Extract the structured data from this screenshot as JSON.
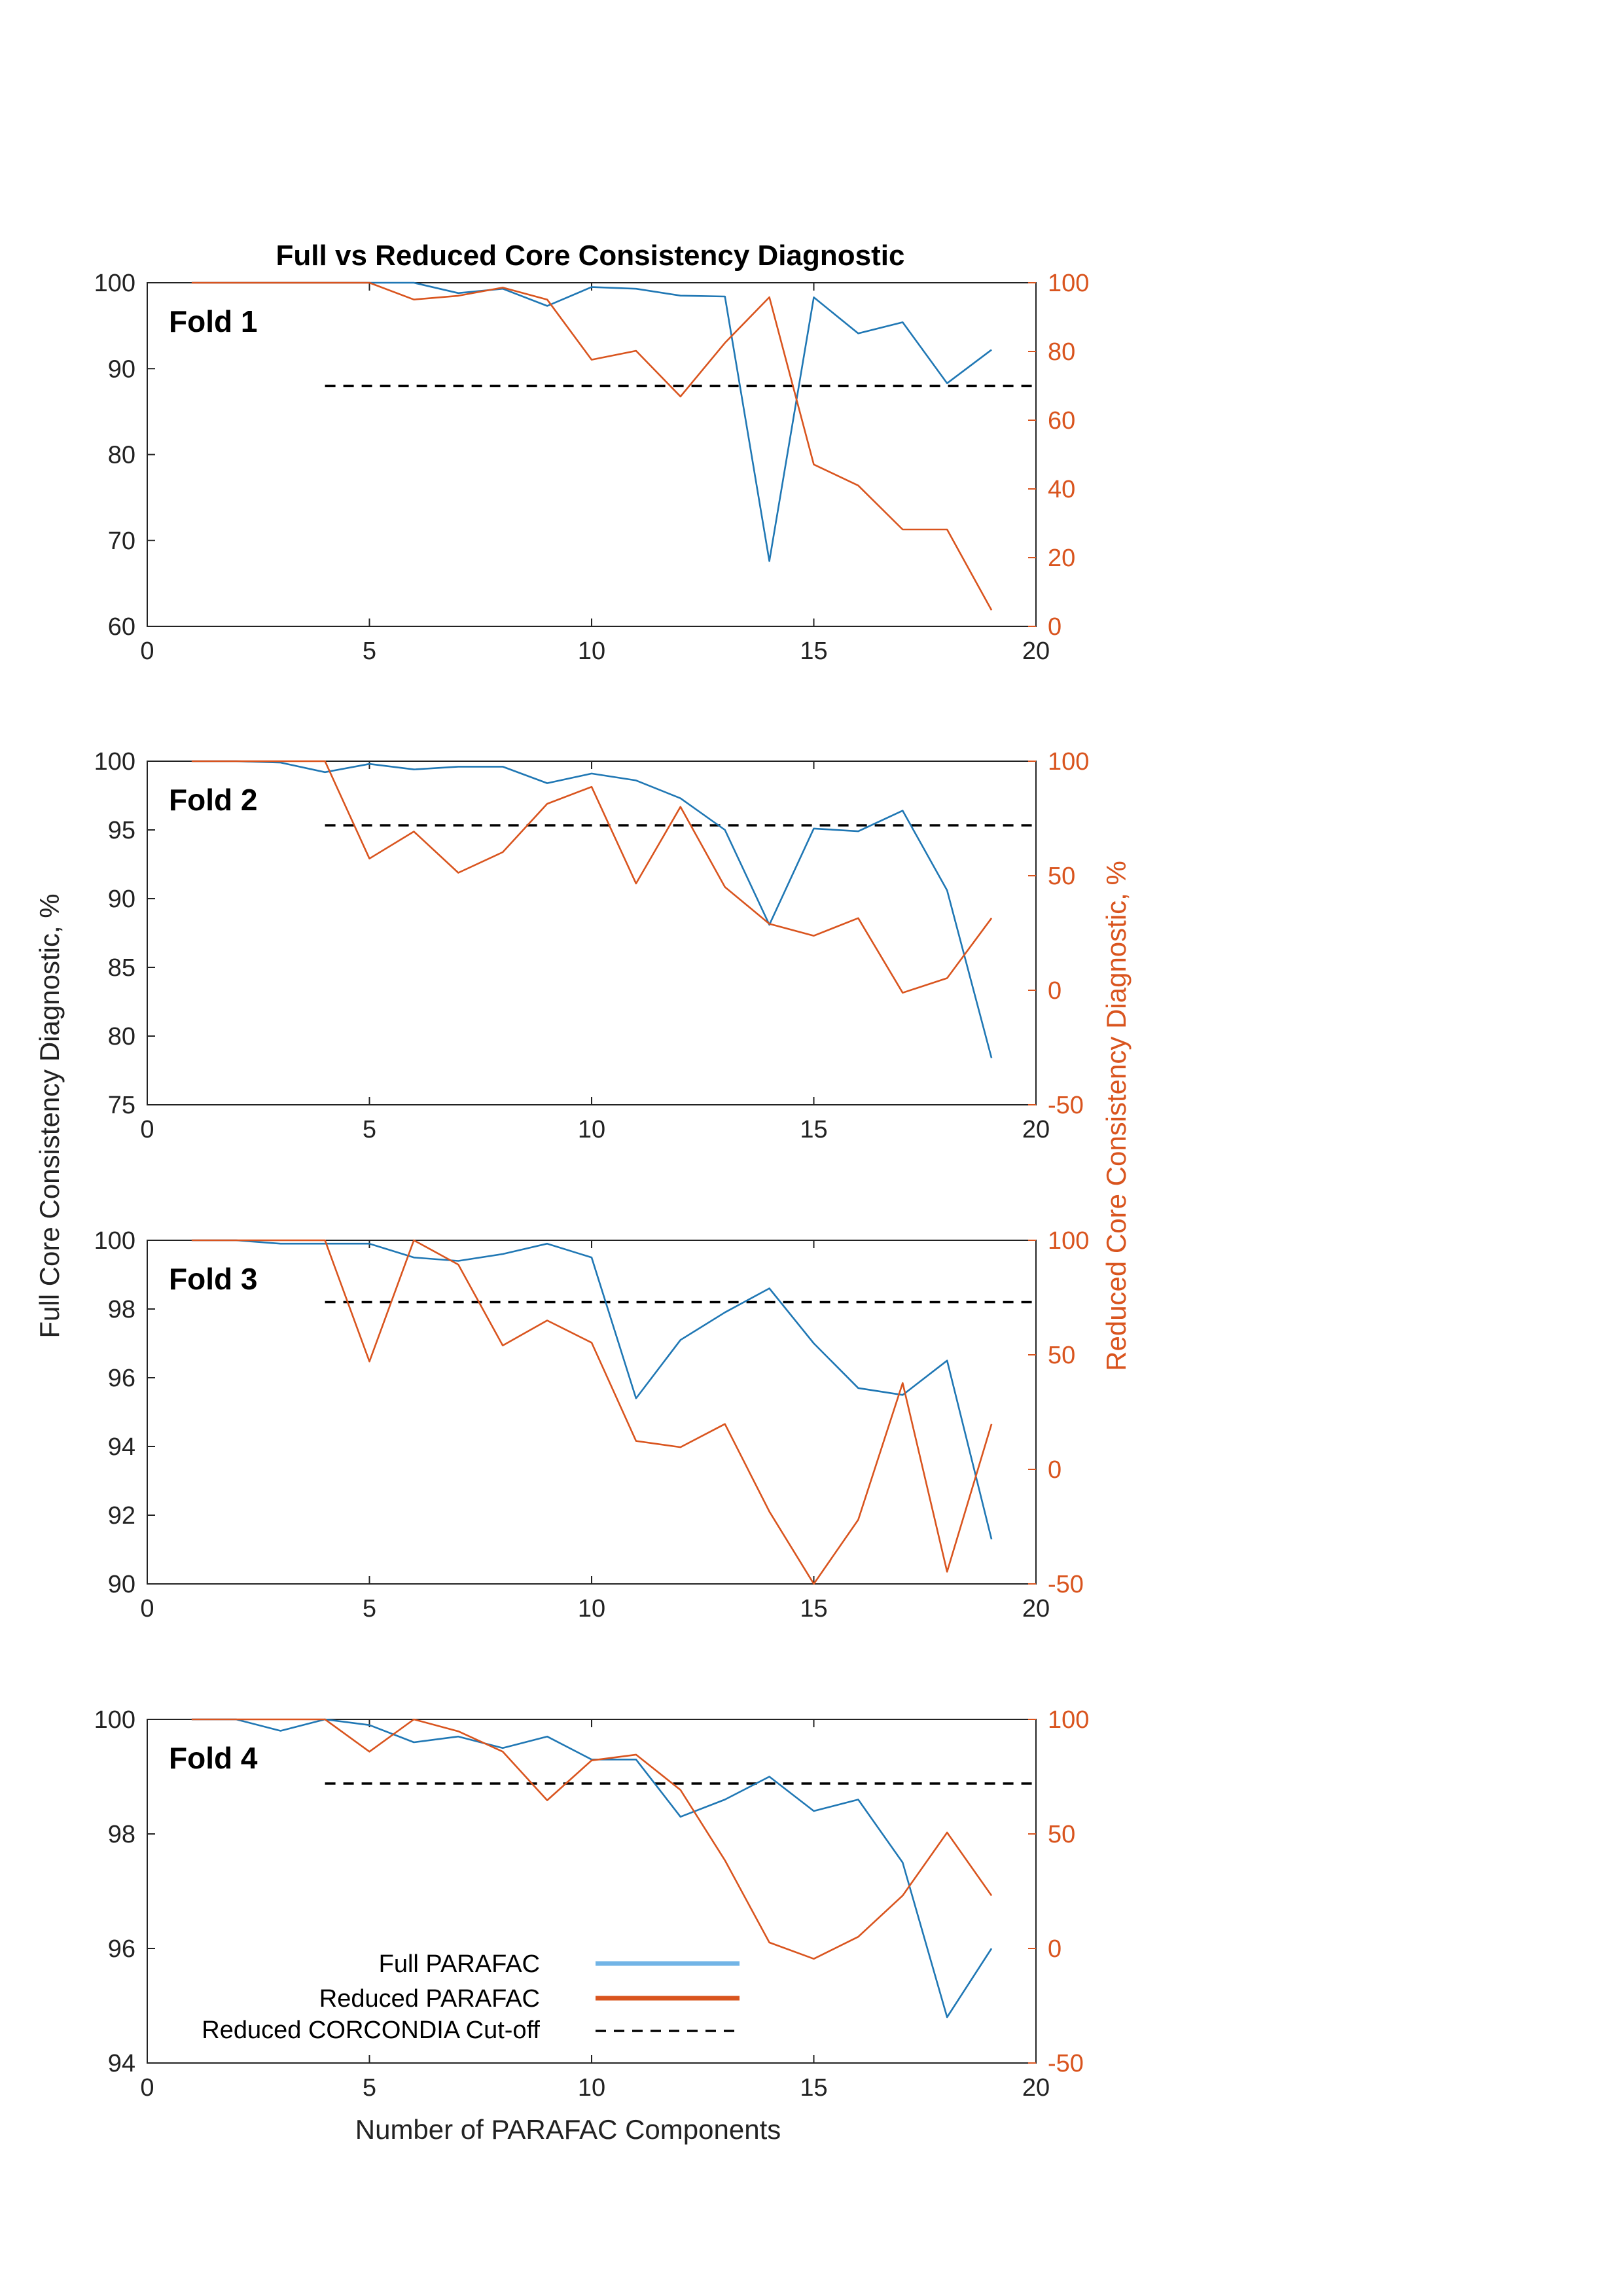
{
  "figure": {
    "title": "Full vs Reduced Core Consistency Diagnostic",
    "left_axis_label": "Full Core Consistency Diagnostic, %",
    "right_axis_label": "Reduced Core Consistency Diagnostic, %",
    "x_axis_label": "Number of PARAFAC Components"
  },
  "legend": {
    "entries": [
      {
        "label": "Full PARAFAC",
        "color": "#72b4e6",
        "style": "solid"
      },
      {
        "label": "Reduced PARAFAC",
        "color": "#d9541e",
        "style": "solid"
      },
      {
        "label": "Reduced CORCONDIA Cut-off",
        "color": "#000000",
        "style": "dashed"
      }
    ],
    "placement": "bottom-center of Fold 4 panel"
  },
  "colors": {
    "full": "#1f77b4",
    "reduced": "#d9541e",
    "reduced_axis": "#d9541e",
    "cutoff": "#000000"
  },
  "chart_data": [
    {
      "type": "line",
      "panel_label": "Fold 1",
      "x": [
        1,
        2,
        3,
        4,
        5,
        6,
        7,
        8,
        9,
        10,
        11,
        12,
        13,
        14,
        15,
        16,
        17,
        18,
        19
      ],
      "xlim": [
        0,
        20
      ],
      "xticks": [
        0,
        5,
        10,
        15,
        20
      ],
      "ylim_left": [
        60,
        100
      ],
      "yticks_left": [
        60,
        70,
        80,
        90,
        100
      ],
      "ylim_right": [
        0,
        100
      ],
      "yticks_right": [
        0,
        20,
        40,
        60,
        80,
        100
      ],
      "series": [
        {
          "name": "Full PARAFAC",
          "axis": "left",
          "values": [
            100,
            100,
            100,
            100,
            100,
            100,
            98.8,
            99.3,
            97.3,
            99.5,
            99.3,
            98.5,
            98.4,
            67.6,
            98.3,
            94.1,
            95.4,
            88.3,
            92.2
          ]
        },
        {
          "name": "Reduced PARAFAC",
          "axis": "right",
          "values": [
            100,
            100,
            100,
            100,
            100,
            95.1,
            96.2,
            98.6,
            95.1,
            77.6,
            80.2,
            66.9,
            82.5,
            95.8,
            47.1,
            41.0,
            28.2,
            28.2,
            4.7
          ]
        }
      ],
      "cutoff": {
        "axis": "right",
        "value": 70,
        "x_start": 4,
        "x_end": 20
      }
    },
    {
      "type": "line",
      "panel_label": "Fold 2",
      "x": [
        1,
        2,
        3,
        4,
        5,
        6,
        7,
        8,
        9,
        10,
        11,
        12,
        13,
        14,
        15,
        16,
        17,
        18,
        19
      ],
      "xlim": [
        0,
        20
      ],
      "xticks": [
        0,
        5,
        10,
        15,
        20
      ],
      "ylim_left": [
        75,
        100
      ],
      "yticks_left": [
        75,
        80,
        85,
        90,
        95,
        100
      ],
      "ylim_right": [
        -50,
        100
      ],
      "yticks_right": [
        -50,
        0,
        50,
        100
      ],
      "series": [
        {
          "name": "Full PARAFAC",
          "axis": "left",
          "values": [
            100,
            100,
            99.9,
            99.2,
            99.8,
            99.4,
            99.6,
            99.6,
            98.4,
            99.1,
            98.6,
            97.3,
            95.0,
            88.1,
            95.1,
            94.9,
            96.4,
            90.6,
            78.4
          ]
        },
        {
          "name": "Reduced PARAFAC",
          "axis": "right",
          "values": [
            100,
            100,
            100,
            100,
            57.5,
            69.3,
            51.3,
            60.3,
            81.4,
            88.8,
            46.6,
            80.1,
            45.1,
            29.0,
            23.8,
            31.5,
            -1.1,
            5.3,
            31.5
          ]
        }
      ],
      "cutoff": {
        "axis": "right",
        "value": 72,
        "x_start": 4,
        "x_end": 20
      }
    },
    {
      "type": "line",
      "panel_label": "Fold 3",
      "x": [
        1,
        2,
        3,
        4,
        5,
        6,
        7,
        8,
        9,
        10,
        11,
        12,
        13,
        14,
        15,
        16,
        17,
        18,
        19
      ],
      "xlim": [
        0,
        20
      ],
      "xticks": [
        0,
        5,
        10,
        15,
        20
      ],
      "ylim_left": [
        90,
        100
      ],
      "yticks_left": [
        90,
        92,
        94,
        96,
        98,
        100
      ],
      "ylim_right": [
        -50,
        100
      ],
      "yticks_right": [
        -50,
        0,
        50,
        100
      ],
      "series": [
        {
          "name": "Full PARAFAC",
          "axis": "left",
          "values": [
            100,
            100,
            99.9,
            99.9,
            99.9,
            99.5,
            99.4,
            99.6,
            99.9,
            99.5,
            95.4,
            97.1,
            97.9,
            98.6,
            97.0,
            95.7,
            95.5,
            96.5,
            91.3
          ]
        },
        {
          "name": "Reduced PARAFAC",
          "axis": "right",
          "values": [
            100,
            100,
            100,
            100,
            47.1,
            100,
            89.4,
            54.1,
            65.0,
            55.3,
            12.4,
            9.7,
            19.8,
            -18.4,
            -50.0,
            -22.0,
            37.7,
            -44.7,
            19.8
          ]
        }
      ],
      "cutoff": {
        "axis": "right",
        "value": 73,
        "x_start": 4,
        "x_end": 20
      }
    },
    {
      "type": "line",
      "panel_label": "Fold 4",
      "x": [
        1,
        2,
        3,
        4,
        5,
        6,
        7,
        8,
        9,
        10,
        11,
        12,
        13,
        14,
        15,
        16,
        17,
        18,
        19
      ],
      "xlim": [
        0,
        20
      ],
      "xticks": [
        0,
        5,
        10,
        15,
        20
      ],
      "xlabel": "Number of PARAFAC Components",
      "ylim_left": [
        94,
        100
      ],
      "yticks_left": [
        94,
        96,
        98,
        100
      ],
      "ylim_right": [
        -50,
        100
      ],
      "yticks_right": [
        -50,
        0,
        50,
        100
      ],
      "series": [
        {
          "name": "Full PARAFAC",
          "axis": "left",
          "values": [
            100,
            100,
            99.8,
            100,
            99.9,
            99.6,
            99.7,
            99.5,
            99.7,
            99.3,
            99.3,
            98.3,
            98.6,
            99.0,
            98.4,
            98.6,
            97.5,
            94.8,
            96.0
          ]
        },
        {
          "name": "Reduced PARAFAC",
          "axis": "right",
          "values": [
            100,
            100,
            100,
            100,
            85.9,
            100,
            94.8,
            85.9,
            64.7,
            82.1,
            84.6,
            69.2,
            38.5,
            2.6,
            -4.5,
            5.1,
            23.1,
            50.6,
            23.1
          ]
        }
      ],
      "cutoff": {
        "axis": "right",
        "value": 72,
        "x_start": 4,
        "x_end": 20
      }
    }
  ]
}
